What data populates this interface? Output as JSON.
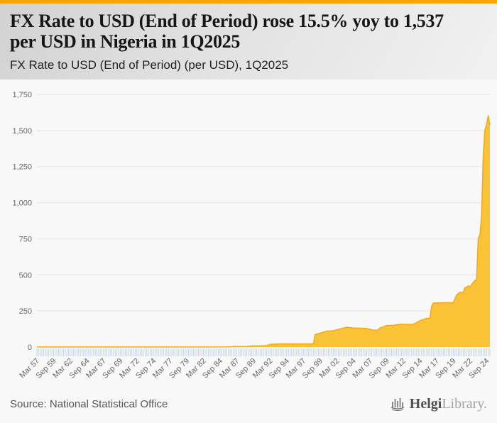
{
  "header": {
    "title_line1": "FX Rate to USD (End of Period) rose 15.5% yoy to 1,537",
    "title_line2": "per USD in Nigeria in 1Q2025",
    "subtitle": "FX Rate to USD (End of Period) (per USD), 1Q2025"
  },
  "footer": {
    "source": "Source: National Statistical Office",
    "logo_part1": "Helgi",
    "logo_part2": "Library."
  },
  "colors": {
    "accent_orange": "#f7a600",
    "area_fill": "#fac235",
    "area_line": "#f2a81b",
    "grid": "#e5e5e5",
    "quarter_tick": "#c9d4ea",
    "axis_label": "#666666",
    "page_bg": "#f8f8f8"
  },
  "chart_data": {
    "type": "area",
    "title": "FX Rate to USD (End of Period) (per USD), 1Q2025",
    "xlabel": "",
    "ylabel": "",
    "ylim": [
      0,
      1750
    ],
    "grid": true,
    "legend": "none",
    "x_range_years": [
      1957.25,
      2025.25
    ],
    "x_tick_years": [
      1957.25,
      1959.75,
      1962.25,
      1964.75,
      1967.25,
      1969.75,
      1972.25,
      1974.75,
      1977.25,
      1979.75,
      1982.25,
      1984.75,
      1987.25,
      1989.75,
      1992.25,
      1994.75,
      1997.25,
      1999.75,
      2002.25,
      2004.75,
      2007.25,
      2009.75,
      2012.25,
      2014.75,
      2017.25,
      2019.75,
      2022.25,
      2024.75
    ],
    "x_tick_labels": [
      "Mar 57",
      "Sep 59",
      "Mar 62",
      "Sep 64",
      "Mar 67",
      "Sep 69",
      "Mar 72",
      "Sep 74",
      "Mar 77",
      "Sep 79",
      "Mar 82",
      "Sep 84",
      "Mar 87",
      "Sep 89",
      "Mar 92",
      "Sep 94",
      "Mar 97",
      "Sep 99",
      "Mar 02",
      "Sep 04",
      "Mar 07",
      "Sep 09",
      "Mar 12",
      "Sep 14",
      "Mar 17",
      "Sep 19",
      "Mar 22",
      "Sep 24"
    ],
    "y_tick_values": [
      0,
      250,
      500,
      750,
      1000,
      1250,
      1500,
      1750
    ],
    "y_tick_labels": [
      "0",
      "250",
      "500",
      "750",
      "1,000",
      "1,250",
      "1,500",
      "1,750"
    ],
    "quarters_total": 273,
    "series": [
      {
        "name": "FX Rate to USD (End of Period), Nigeria, NGN per USD",
        "x": [
          1957.25,
          1971.75,
          1980.0,
          1985.75,
          1986.5,
          1986.75,
          1987.75,
          1988.75,
          1989.5,
          1990.75,
          1991.75,
          1992.25,
          1992.75,
          1993.75,
          1998.75,
          1999.0,
          1999.75,
          2000.75,
          2001.75,
          2002.75,
          2003.75,
          2004.75,
          2005.75,
          2006.75,
          2007.75,
          2008.5,
          2008.75,
          2009.75,
          2010.75,
          2011.75,
          2012.75,
          2013.75,
          2014.75,
          2015.75,
          2016.25,
          2016.5,
          2016.75,
          2017.75,
          2018.75,
          2019.75,
          2020.25,
          2020.75,
          2021.25,
          2021.5,
          2021.75,
          2022.0,
          2022.25,
          2022.75,
          2023.0,
          2023.25,
          2023.5,
          2023.75,
          2024.0,
          2024.25,
          2024.5,
          2024.75,
          2025.0,
          2025.25
        ],
        "values": [
          0.71,
          0.71,
          0.55,
          0.89,
          1.75,
          3.32,
          4.14,
          4.54,
          7.65,
          8.04,
          9.91,
          18.6,
          19.66,
          21.89,
          21.89,
          86.0,
          96.1,
          110.0,
          113.0,
          126.4,
          137.0,
          132.4,
          130.3,
          128.3,
          117.7,
          117.8,
          132.6,
          149.6,
          150.5,
          158.2,
          157.3,
          157.3,
          183.0,
          199.0,
          199.0,
          283.0,
          305.0,
          306.0,
          307.0,
          307.0,
          361.0,
          379.5,
          380.7,
          411.6,
          414.7,
          424.1,
          415.6,
          448.1,
          461.5,
          464.5,
          756.0,
          777.0,
          907.1,
          1330.9,
          1505.3,
          1541.0,
          1604.0,
          1537.0
        ]
      }
    ],
    "last_value": 1537,
    "yoy_change_pct": 15.5
  }
}
